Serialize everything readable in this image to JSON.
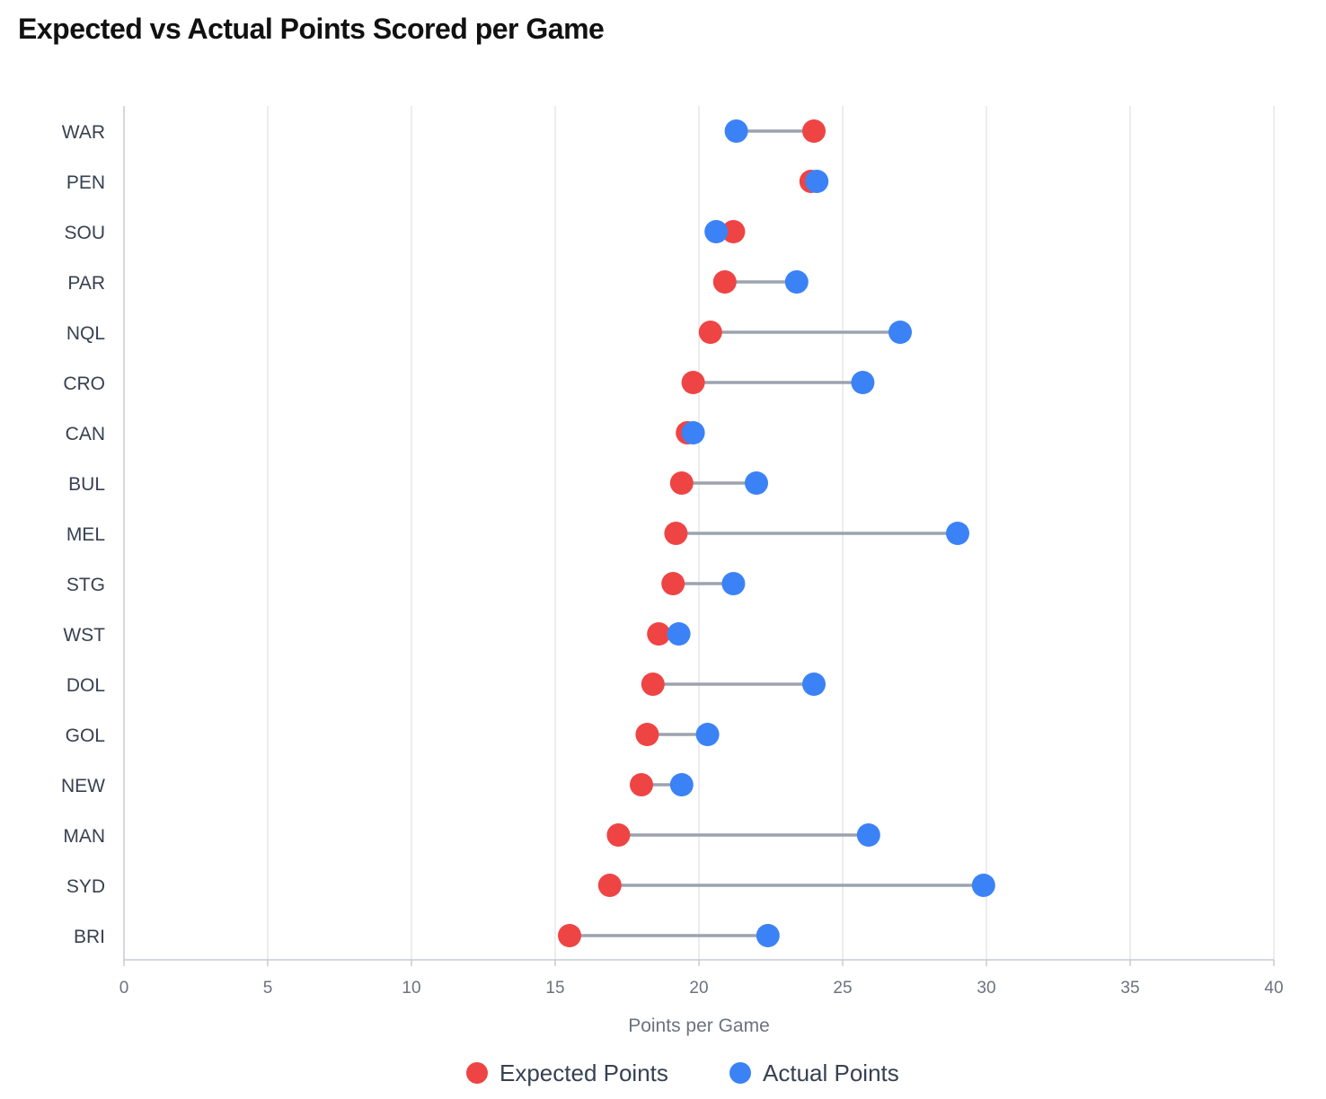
{
  "title": "Expected vs Actual Points Scored per Game",
  "chart_data": {
    "type": "dumbbell",
    "title": "Expected vs Actual Points Scored per Game",
    "xlabel": "Points per Game",
    "ylabel": "",
    "xlim": [
      0,
      40
    ],
    "xticks": [
      0,
      5,
      10,
      15,
      20,
      25,
      30,
      35,
      40
    ],
    "grid": "vertical",
    "legend_position": "bottom",
    "categories": [
      "WAR",
      "PEN",
      "SOU",
      "PAR",
      "NQL",
      "CRO",
      "CAN",
      "BUL",
      "MEL",
      "STG",
      "WST",
      "DOL",
      "GOL",
      "NEW",
      "MAN",
      "SYD",
      "BRI"
    ],
    "series": [
      {
        "name": "Expected Points",
        "color": "#ef4444",
        "values": [
          24.0,
          23.9,
          21.2,
          20.9,
          20.4,
          19.8,
          19.6,
          19.4,
          19.2,
          19.1,
          18.6,
          18.4,
          18.2,
          18.0,
          17.2,
          16.9,
          15.5
        ]
      },
      {
        "name": "Actual Points",
        "color": "#3b82f6",
        "values": [
          21.3,
          24.1,
          20.6,
          23.4,
          27.0,
          25.7,
          19.8,
          22.0,
          29.0,
          21.2,
          19.3,
          24.0,
          20.3,
          19.4,
          25.9,
          29.9,
          22.4
        ]
      }
    ],
    "connector_color": "#9ca3af",
    "grid_color": "#e5e7eb",
    "axis_color": "#c7cad6"
  }
}
